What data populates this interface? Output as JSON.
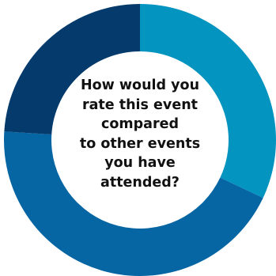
{
  "chart_data": {
    "type": "pie",
    "donut": true,
    "center_title_lines": [
      "How would you",
      "rate this event",
      "compared",
      "to other events",
      "you have",
      "attended?"
    ],
    "slices": [
      {
        "value": 32,
        "color": "#0394c0"
      },
      {
        "value": 44,
        "color": "#0665a3"
      },
      {
        "value": 24,
        "color": "#053b6c"
      }
    ],
    "start_angle_deg": 0,
    "direction": "clockwise",
    "legend": "none"
  }
}
